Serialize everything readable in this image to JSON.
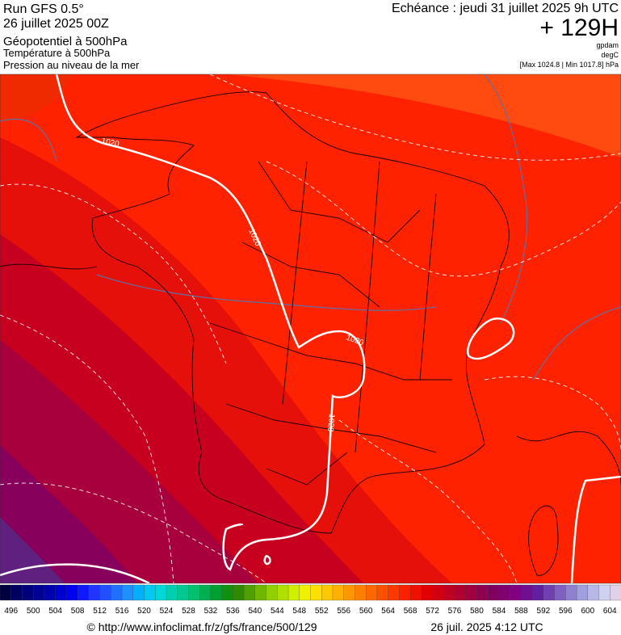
{
  "header": {
    "run": "Run GFS 0.5°",
    "run_date": "26 juillet 2025 00Z",
    "field_main": "Géopotentiel à 500hPa",
    "field_temp": "Température à 500hPa",
    "field_pressure": "Pression au niveau de la mer",
    "valid_time": "Echéance : jeudi 31 juillet 2025 9h UTC",
    "lead_time": "+ 129H",
    "unit_geopotential": "gpdam",
    "unit_temp": "degC",
    "pressure_range": "[Max 1024.8 | Min 1017.8] hPa"
  },
  "contour_labels": [
    "1020",
    "1020",
    "1020",
    "1020"
  ],
  "colorbar": {
    "labels": [
      496,
      500,
      504,
      508,
      512,
      516,
      520,
      524,
      528,
      532,
      536,
      540,
      544,
      548,
      552,
      556,
      560,
      564,
      568,
      572,
      576,
      580,
      584,
      588,
      592,
      596,
      600,
      604
    ],
    "colors": [
      "#000040",
      "#000060",
      "#00007a",
      "#000095",
      "#0000b0",
      "#0000d0",
      "#0000f0",
      "#1018ff",
      "#2035ff",
      "#2050ff",
      "#2070ff",
      "#2090ff",
      "#00b0ff",
      "#00c8f0",
      "#00d8d8",
      "#00d0b0",
      "#00c890",
      "#00c070",
      "#00b050",
      "#00a030",
      "#109010",
      "#308a00",
      "#50a000",
      "#70b800",
      "#90d000",
      "#b0e000",
      "#d0f000",
      "#f0f000",
      "#ffe000",
      "#ffc800",
      "#ffb000",
      "#ff9800",
      "#ff8000",
      "#ff6800",
      "#ff5000",
      "#ff3800",
      "#ff2000",
      "#f01000",
      "#e00000",
      "#d00010",
      "#c00020",
      "#b00030",
      "#a00040",
      "#900050",
      "#800060",
      "#800070",
      "#800080",
      "#701090",
      "#6020a0",
      "#7040b0",
      "#8060c0",
      "#9080d0",
      "#a0a0e0",
      "#b8b8e8",
      "#d0d0f0",
      "#e0d0e8"
    ]
  },
  "footer": {
    "url": "© http://www.infoclimat.fr/z/gfs/france/500/129",
    "timestamp": "26 juil. 2025  4:12 UTC"
  }
}
